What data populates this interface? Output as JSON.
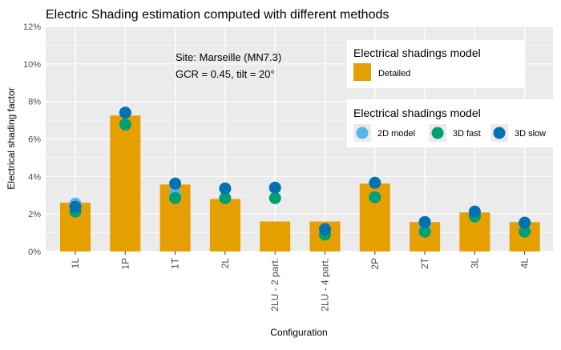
{
  "chart_data": {
    "type": "bar",
    "title": "Electric Shading estimation computed with different methods",
    "xlabel": "Configuration",
    "ylabel": "Electrical shading factor",
    "ylim": [
      0,
      12
    ],
    "yticks": [
      "0%",
      "2%",
      "4%",
      "6%",
      "8%",
      "10%",
      "12%"
    ],
    "categories": [
      "1L",
      "1P",
      "1T",
      "2L",
      "2LU - 2 part.",
      "2LU - 4 part.",
      "2P",
      "2T",
      "3L",
      "4L"
    ],
    "bars": {
      "name": "Detailed",
      "color": "#E69F00",
      "values": [
        2.6,
        7.25,
        3.57,
        2.8,
        1.6,
        1.6,
        3.62,
        1.57,
        2.08,
        1.57
      ]
    },
    "series": [
      {
        "name": "2D model",
        "color": "#56B4E9",
        "values": [
          2.55,
          7.4,
          3.1,
          3.35,
          3.4,
          1.19,
          3.66,
          1.4,
          2.0,
          1.53
        ]
      },
      {
        "name": "3D fast",
        "color": "#009E73",
        "values": [
          2.13,
          6.77,
          2.85,
          2.85,
          2.85,
          0.9,
          2.89,
          1.06,
          1.87,
          1.06
        ]
      },
      {
        "name": "3D slow",
        "color": "#0072B2",
        "values": [
          2.38,
          7.4,
          3.62,
          3.36,
          3.4,
          1.19,
          3.66,
          1.57,
          2.13,
          1.53
        ]
      }
    ],
    "annotations": [
      "Site: Marseille (MN7.3)",
      "GCR = 0.45, tilt = 20°"
    ],
    "legend1_title": "Electrical shadings model",
    "legend2_title": "Electrical shadings model",
    "grid": true,
    "legend_placement": "top-right"
  }
}
